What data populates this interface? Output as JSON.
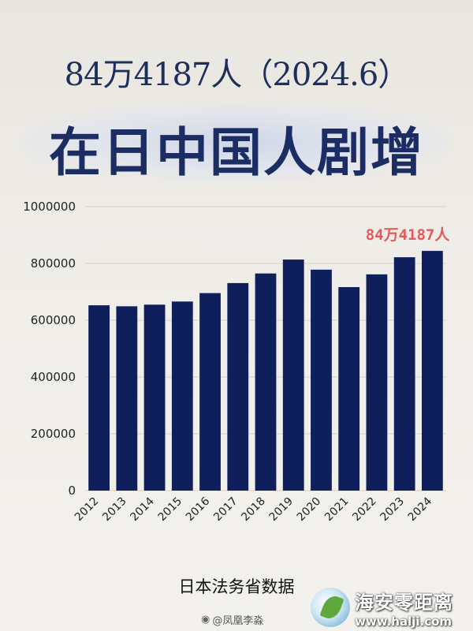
{
  "header": {
    "subtitle": "84万4187人（2024.6）",
    "title": "在日中国人剧增"
  },
  "chart_data": {
    "type": "bar",
    "categories": [
      "2012",
      "2013",
      "2014",
      "2015",
      "2016",
      "2017",
      "2018",
      "2019",
      "2020",
      "2021",
      "2022",
      "2023",
      "2024"
    ],
    "values": [
      652595,
      649078,
      654777,
      665847,
      695522,
      730890,
      764720,
      813675,
      778112,
      716606,
      761563,
      821838,
      844187
    ],
    "ylim": [
      0,
      1000000
    ],
    "yticks": [
      0,
      200000,
      400000,
      600000,
      800000,
      1000000
    ],
    "grid": true,
    "bar_color": "#0f1f5c",
    "annotation": {
      "text": "84万4187人",
      "color": "#e45a5a",
      "category": "2024"
    },
    "xlabel": "",
    "ylabel": ""
  },
  "footer": {
    "source": "日本法务省数据",
    "weibo_handle": "@凤凰李淼"
  },
  "watermark": {
    "name": "海安零距离",
    "url": "www.halji.com"
  }
}
